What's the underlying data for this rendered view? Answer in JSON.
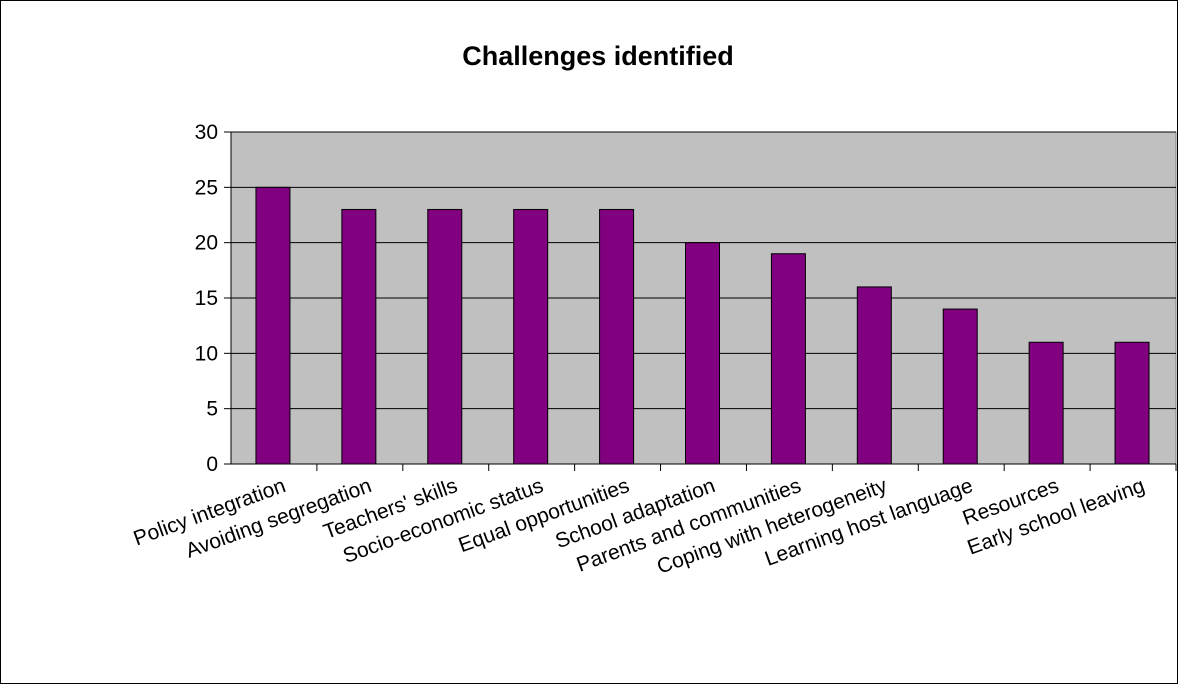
{
  "chart_data": {
    "type": "bar",
    "title": "Challenges identified",
    "xlabel": "",
    "ylabel": "",
    "categories": [
      "Policy integration",
      "Avoiding segregation",
      "Teachers' skills",
      "Socio-economic status",
      "Equal opportunities",
      "School adaptation",
      "Parents and communities",
      "Coping with heterogeneity",
      "Learning host language",
      "Resources",
      "Early school leaving"
    ],
    "values": [
      25,
      23,
      23,
      23,
      23,
      20,
      19,
      16,
      14,
      11,
      11
    ],
    "ylim": [
      0,
      30
    ],
    "yticks": [
      "0",
      "5",
      "10",
      "15",
      "20",
      "25",
      "30"
    ],
    "grid": true,
    "legend": "none",
    "colors": {
      "bar": "#800080",
      "plot_background": "#c0c0c0",
      "gridline": "#000000"
    }
  }
}
